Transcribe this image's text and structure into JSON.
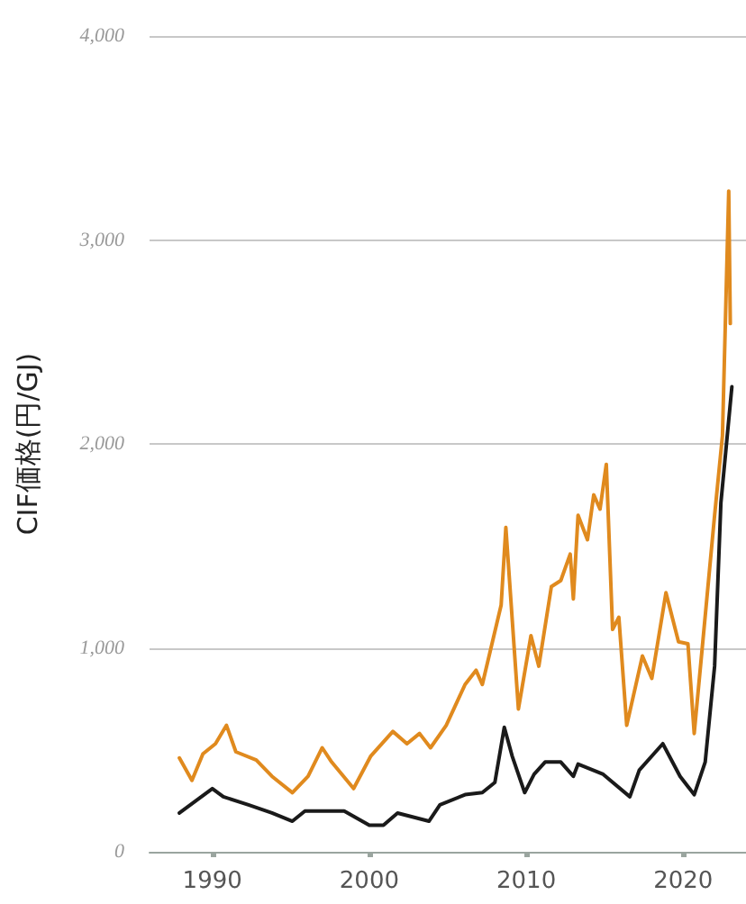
{
  "chart_data": {
    "type": "line",
    "ylabel": "CIF価格(円/GJ)",
    "xlim": [
      1986,
      2024
    ],
    "xticks": [
      1990,
      2000,
      2010,
      2020
    ],
    "ylim": [
      0,
      4000
    ],
    "yticks": [
      {
        "value": 0,
        "label": "0"
      },
      {
        "value": 1000,
        "label": "1,000"
      },
      {
        "value": 2000,
        "label": "2,000"
      },
      {
        "value": 3000,
        "label": "3,000"
      },
      {
        "value": 4000,
        "label": "4,000"
      }
    ],
    "grid": "y",
    "marker": "none",
    "line_style": "solid",
    "series": [
      {
        "color": "#e08a1e",
        "x": [
          1987.9,
          1988.7,
          1989.4,
          1990.2,
          1990.9,
          1991.5,
          1992.8,
          1993.8,
          1995.1,
          1996.1,
          1997.0,
          1997.6,
          1999.0,
          2000.1,
          2001.5,
          2002.4,
          2003.2,
          2003.9,
          2004.9,
          2006.1,
          2006.8,
          2007.2,
          2008.4,
          2008.7,
          2009.5,
          2010.3,
          2010.8,
          2011.6,
          2012.2,
          2012.8,
          2013.0,
          2013.3,
          2013.9,
          2014.3,
          2014.7,
          2015.1,
          2015.5,
          2015.9,
          2016.4,
          2017.4,
          2018.0,
          2018.9,
          2019.7,
          2020.3,
          2020.7,
          2021.2,
          2022.0,
          2022.5,
          2022.9,
          2023.0
        ],
        "values": [
          460,
          350,
          480,
          530,
          620,
          490,
          450,
          370,
          290,
          370,
          510,
          440,
          310,
          470,
          590,
          530,
          580,
          510,
          620,
          820,
          890,
          820,
          1210,
          1590,
          700,
          1060,
          910,
          1300,
          1330,
          1460,
          1240,
          1650,
          1530,
          1750,
          1680,
          1900,
          1090,
          1150,
          620,
          960,
          850,
          1270,
          1030,
          1020,
          580,
          990,
          1650,
          2040,
          3240,
          2590
        ]
      },
      {
        "color": "#1a1a1a",
        "x": [
          1987.9,
          1990.0,
          1990.7,
          1992.3,
          1993.8,
          1995.1,
          1995.9,
          1997.2,
          1998.4,
          2000.0,
          2000.9,
          2001.8,
          2003.8,
          2004.5,
          2006.1,
          2007.2,
          2008.0,
          2008.6,
          2009.1,
          2009.9,
          2010.5,
          2011.2,
          2012.2,
          2013.0,
          2013.3,
          2014.9,
          2016.6,
          2017.2,
          2018.7,
          2019.8,
          2020.7,
          2021.4,
          2022.0,
          2022.4,
          2023.1
        ],
        "values": [
          190,
          310,
          270,
          230,
          190,
          150,
          200,
          200,
          200,
          130,
          130,
          190,
          150,
          230,
          280,
          290,
          340,
          610,
          470,
          290,
          380,
          440,
          440,
          370,
          430,
          380,
          270,
          400,
          530,
          370,
          280,
          440,
          910,
          1710,
          2280
        ]
      }
    ]
  }
}
